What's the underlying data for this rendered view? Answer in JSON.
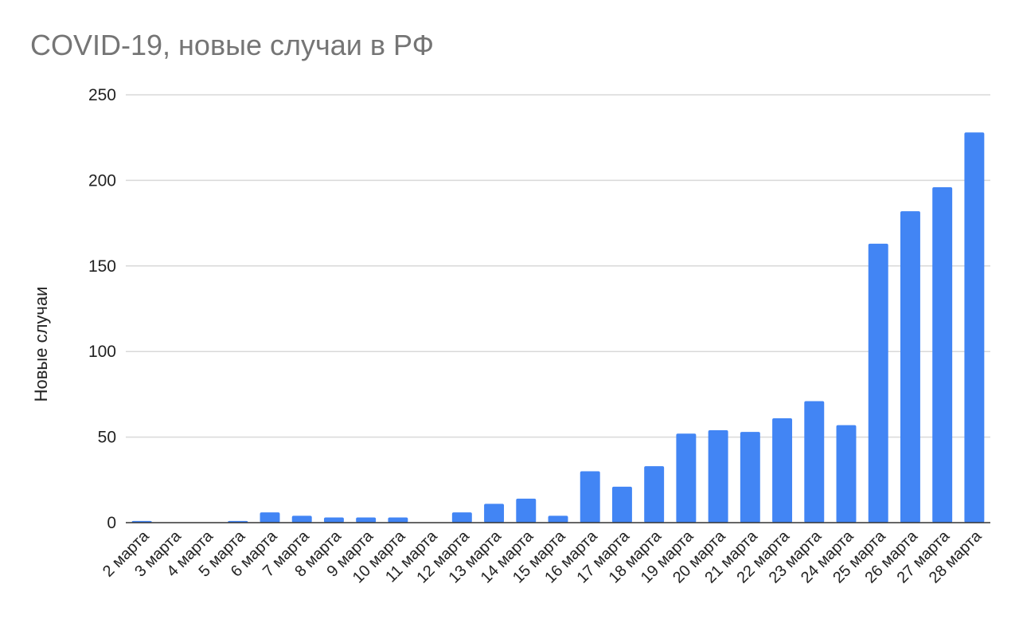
{
  "chart_data": {
    "type": "bar",
    "title": "COVID-19, новые случаи в РФ",
    "ylabel": "Новые случаи",
    "xlabel": "",
    "ylim": [
      0,
      250
    ],
    "yticks": [
      "0",
      "50",
      "100",
      "150",
      "200",
      "250"
    ],
    "grid": true,
    "color": "#4285f4",
    "categories": [
      "2 марта",
      "3 марта",
      "4 марта",
      "5 марта",
      "6 марта",
      "7 марта",
      "8 марта",
      "9 марта",
      "10 марта",
      "11 марта",
      "12 марта",
      "13 марта",
      "14 марта",
      "15 марта",
      "16 марта",
      "17 марта",
      "18 марта",
      "19 марта",
      "20 марта",
      "21 марта",
      "22 марта",
      "23 марта",
      "24 марта",
      "25 марта",
      "26 марта",
      "27 марта",
      "28 марта"
    ],
    "values": [
      1,
      0,
      0,
      1,
      6,
      4,
      3,
      3,
      3,
      0,
      6,
      11,
      14,
      4,
      30,
      21,
      33,
      52,
      54,
      53,
      61,
      71,
      57,
      163,
      182,
      196,
      228
    ]
  }
}
